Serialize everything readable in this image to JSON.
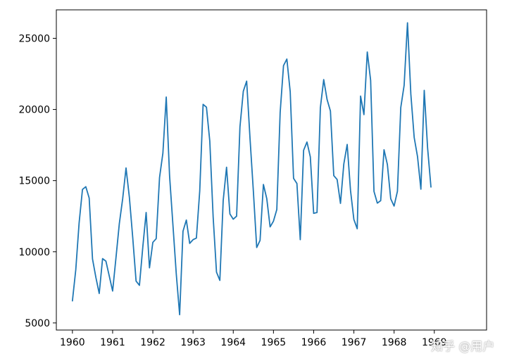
{
  "chart_data": {
    "type": "line",
    "title": "",
    "xlabel": "",
    "ylabel": "",
    "xlim": [
      1959.6,
      1970.3
    ],
    "ylim": [
      4500,
      27000
    ],
    "grid": false,
    "legend": "none",
    "color": "#1f77b4",
    "x_ticks": [
      1960,
      1961,
      1962,
      1963,
      1964,
      1965,
      1966,
      1967,
      1968,
      1969
    ],
    "x_tick_labels": [
      "1960",
      "1961",
      "1962",
      "1963",
      "1964",
      "1965",
      "1966",
      "1967",
      "1968",
      "1969"
    ],
    "y_ticks": [
      5000,
      10000,
      15000,
      20000,
      25000
    ],
    "y_tick_labels": [
      "5000",
      "10000",
      "15000",
      "20000",
      "25000"
    ],
    "series": [
      {
        "x_start": 1960,
        "x_step": 0.08333,
        "values": [
          6550,
          8730,
          12030,
          14380,
          14570,
          13780,
          9490,
          8200,
          7070,
          9520,
          9340,
          8290,
          7240,
          9580,
          11980,
          13730,
          15890,
          13830,
          11000,
          7940,
          7640,
          10320,
          12760,
          8870,
          10660,
          10920,
          15210,
          16930,
          20870,
          15330,
          11880,
          8430,
          5580,
          11440,
          12230,
          10590,
          10850,
          10960,
          14280,
          20360,
          20160,
          17770,
          12450,
          8570,
          7990,
          13610,
          15940,
          12660,
          12290,
          12500,
          18770,
          21280,
          21990,
          17980,
          14270,
          10300,
          10800,
          14730,
          13740,
          11750,
          12150,
          12970,
          19790,
          23080,
          23540,
          21240,
          15160,
          14800,
          10850,
          17130,
          17710,
          16670,
          12700,
          12760,
          20130,
          22100,
          20700,
          19890,
          15350,
          15080,
          13400,
          16170,
          17540,
          14300,
          12270,
          11620,
          20940,
          19640,
          24040,
          22050,
          14240,
          13420,
          13590,
          17170,
          16130,
          13720,
          13210,
          14250,
          20140,
          21700,
          26090,
          21080,
          18030,
          16680,
          14400,
          21340,
          17300,
          14550
        ]
      }
    ]
  },
  "watermark": {
    "text": "知乎 @用户"
  }
}
